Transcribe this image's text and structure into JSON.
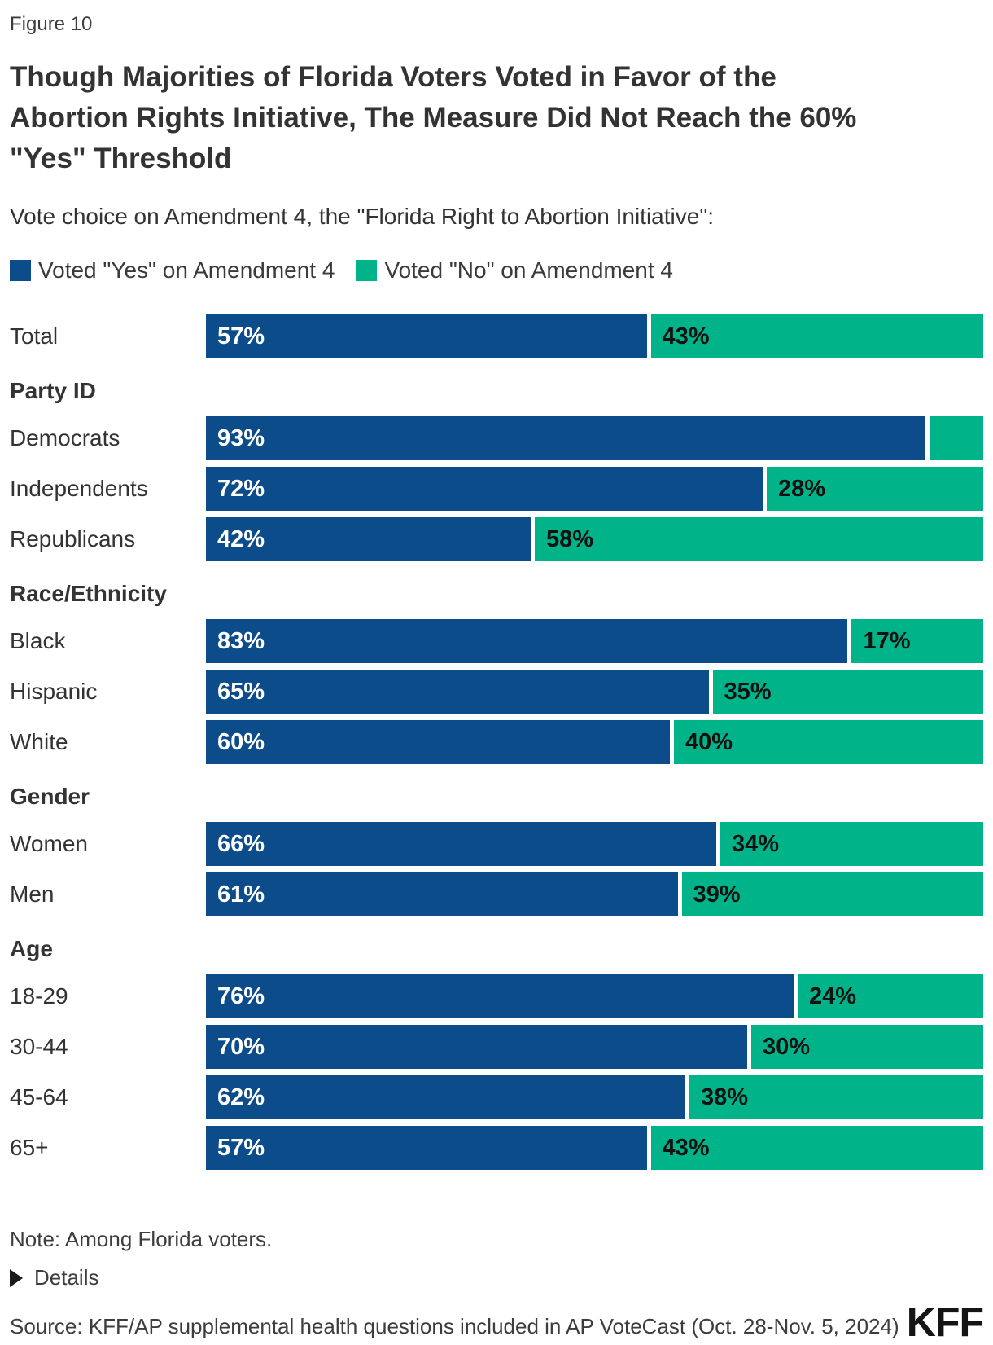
{
  "figure_label": "Figure 10",
  "title": "Though Majorities of Florida Voters Voted in Favor of the Abortion Rights Initiative, The Measure Did Not Reach the 60% \"Yes\" Threshold",
  "subtitle": "Vote choice on Amendment 4, the \"Florida Right to Abortion Initiative\":",
  "colors": {
    "yes": "#0c4c8a",
    "no": "#00b388"
  },
  "legend": [
    {
      "label": "Voted \"Yes\" on Amendment 4",
      "color": "#0c4c8a"
    },
    {
      "label": "Voted \"No\" on Amendment 4",
      "color": "#00b388"
    }
  ],
  "chart_data": {
    "type": "bar",
    "orientation": "horizontal",
    "stacked": true,
    "unit": "percent",
    "xlim": [
      0,
      100
    ],
    "series_names": [
      "Voted \"Yes\" on Amendment 4",
      "Voted \"No\" on Amendment 4"
    ],
    "rows": [
      {
        "kind": "bar",
        "label": "Total",
        "yes": 57,
        "no": 43,
        "yes_label": "57%",
        "no_label": "43%"
      },
      {
        "kind": "section",
        "label": "Party ID"
      },
      {
        "kind": "bar",
        "label": "Democrats",
        "yes": 93,
        "no": 7,
        "yes_label": "93%",
        "no_label": ""
      },
      {
        "kind": "bar",
        "label": "Independents",
        "yes": 72,
        "no": 28,
        "yes_label": "72%",
        "no_label": "28%"
      },
      {
        "kind": "bar",
        "label": "Republicans",
        "yes": 42,
        "no": 58,
        "yes_label": "42%",
        "no_label": "58%"
      },
      {
        "kind": "section",
        "label": "Race/Ethnicity"
      },
      {
        "kind": "bar",
        "label": "Black",
        "yes": 83,
        "no": 17,
        "yes_label": "83%",
        "no_label": "17%"
      },
      {
        "kind": "bar",
        "label": "Hispanic",
        "yes": 65,
        "no": 35,
        "yes_label": "65%",
        "no_label": "35%"
      },
      {
        "kind": "bar",
        "label": "White",
        "yes": 60,
        "no": 40,
        "yes_label": "60%",
        "no_label": "40%"
      },
      {
        "kind": "section",
        "label": "Gender"
      },
      {
        "kind": "bar",
        "label": "Women",
        "yes": 66,
        "no": 34,
        "yes_label": "66%",
        "no_label": "34%"
      },
      {
        "kind": "bar",
        "label": "Men",
        "yes": 61,
        "no": 39,
        "yes_label": "61%",
        "no_label": "39%"
      },
      {
        "kind": "section",
        "label": "Age"
      },
      {
        "kind": "bar",
        "label": "18-29",
        "yes": 76,
        "no": 24,
        "yes_label": "76%",
        "no_label": "24%"
      },
      {
        "kind": "bar",
        "label": "30-44",
        "yes": 70,
        "no": 30,
        "yes_label": "70%",
        "no_label": "30%"
      },
      {
        "kind": "bar",
        "label": "45-64",
        "yes": 62,
        "no": 38,
        "yes_label": "62%",
        "no_label": "38%"
      },
      {
        "kind": "bar",
        "label": "65+",
        "yes": 57,
        "no": 43,
        "yes_label": "57%",
        "no_label": "43%"
      }
    ]
  },
  "footer": {
    "note": "Note: Among Florida voters.",
    "details_label": "Details",
    "source": "Source: KFF/AP supplemental health questions included in AP VoteCast (Oct. 28-Nov. 5, 2024)",
    "logo": "KFF"
  }
}
